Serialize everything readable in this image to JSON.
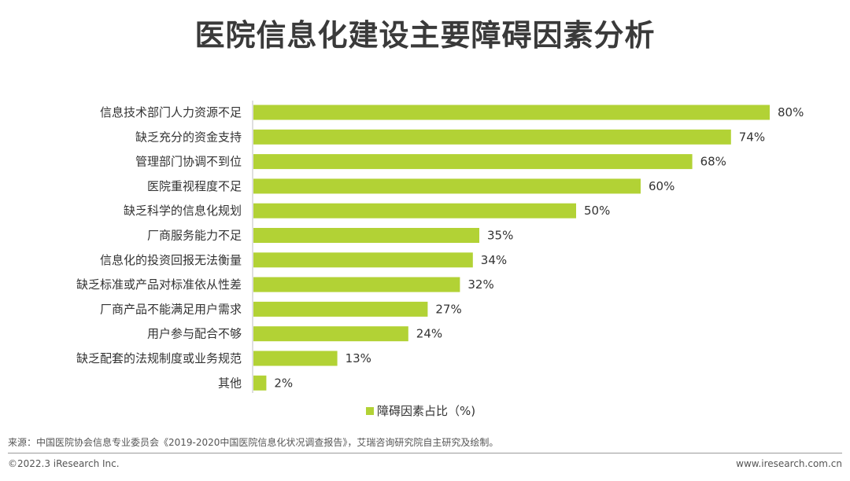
{
  "title": "医院信息化建设主要障碍因素分析",
  "chart_data": {
    "type": "bar",
    "orientation": "horizontal",
    "categories": [
      "信息技术部门人力资源不足",
      "缺乏充分的资金支持",
      "管理部门协调不到位",
      "医院重视程度不足",
      "缺乏科学的信息化规划",
      "厂商服务能力不足",
      "信息化的投资回报无法衡量",
      "缺乏标准或产品对标准依从性差",
      "厂商产品不能满足用户需求",
      "用户参与配合不够",
      "缺乏配套的法规制度或业务规范",
      "其他"
    ],
    "series": [
      {
        "name": "障碍因素占比（%)",
        "values": [
          80,
          74,
          68,
          60,
          50,
          35,
          34,
          32,
          27,
          24,
          13,
          2
        ],
        "color": "#b2d235"
      }
    ],
    "value_suffix": "%",
    "xlim": [
      0,
      80
    ],
    "grid": false,
    "legend_position": "bottom"
  },
  "legend": {
    "label": "障碍因素占比（%)",
    "color": "#b2d235"
  },
  "source": "来源：中国医院协会信息专业委员会《2019-2020中国医院信息化状况调查报告》，艾瑞咨询研究院自主研究及绘制。",
  "copyright": "©2022.3 iResearch Inc.",
  "website": "www.iresearch.com.cn"
}
